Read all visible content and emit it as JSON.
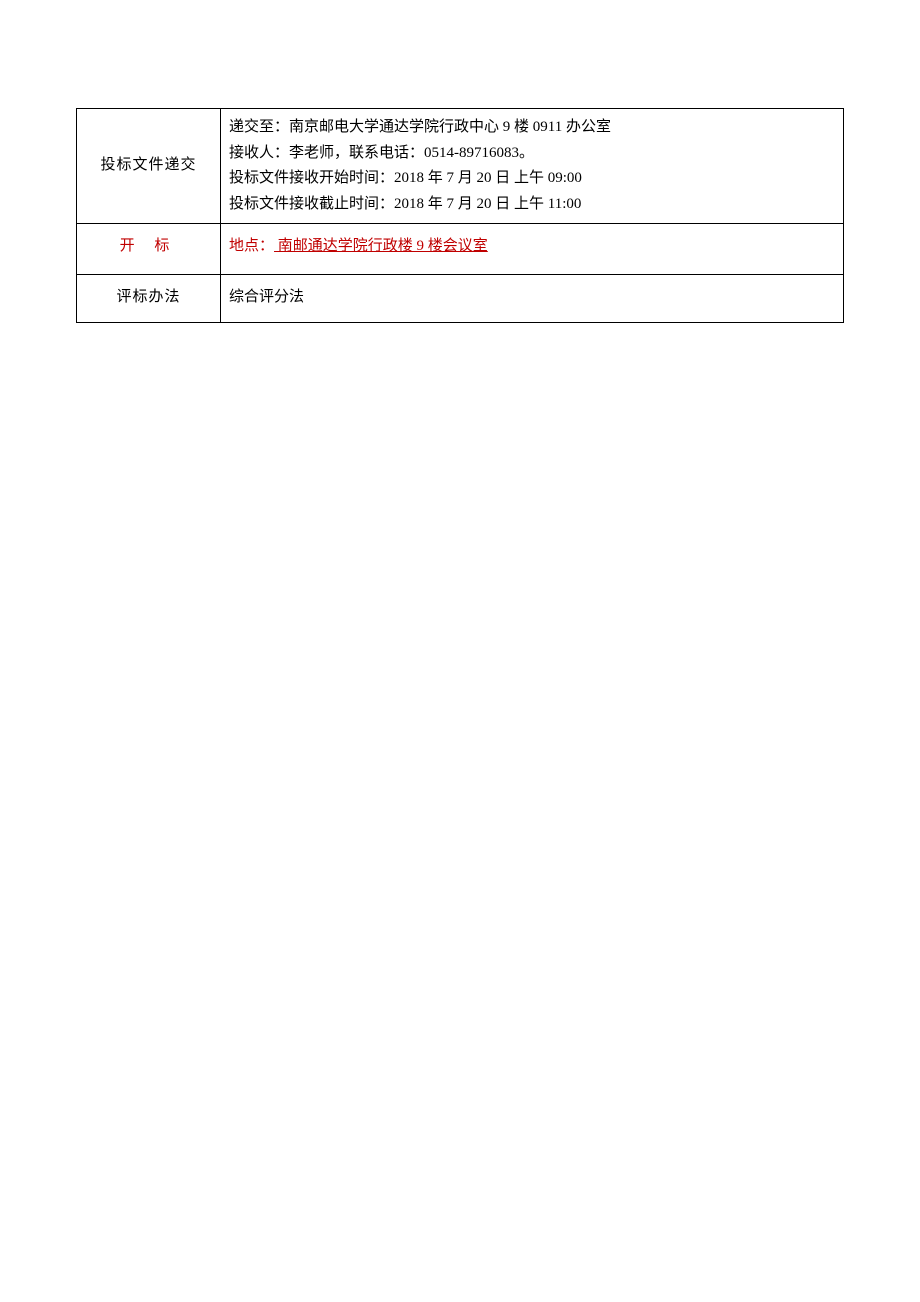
{
  "table": {
    "row1": {
      "label": "投标文件递交",
      "lines": [
        "递交至：南京邮电大学通达学院行政中心 9 楼 0911 办公室",
        "接收人：李老师，联系电话：0514-89716083。",
        "投标文件接收开始时间：2018 年 7 月 20 日 上午 09:00",
        "投标文件接收截止时间：2018 年 7 月 20 日 上午 11:00"
      ]
    },
    "row2": {
      "label": "开  标",
      "location_prefix": "地点：",
      "location_value": " 南邮通达学院行政楼 9 楼会议室"
    },
    "row3": {
      "label": "评标办法",
      "content": "综合评分法"
    }
  },
  "colors": {
    "text": "#000000",
    "highlight": "#c00000",
    "border": "#000000",
    "background": "#ffffff"
  },
  "typography": {
    "font_family": "SimSun",
    "font_size_pt": 11,
    "line_height": 1.7
  }
}
